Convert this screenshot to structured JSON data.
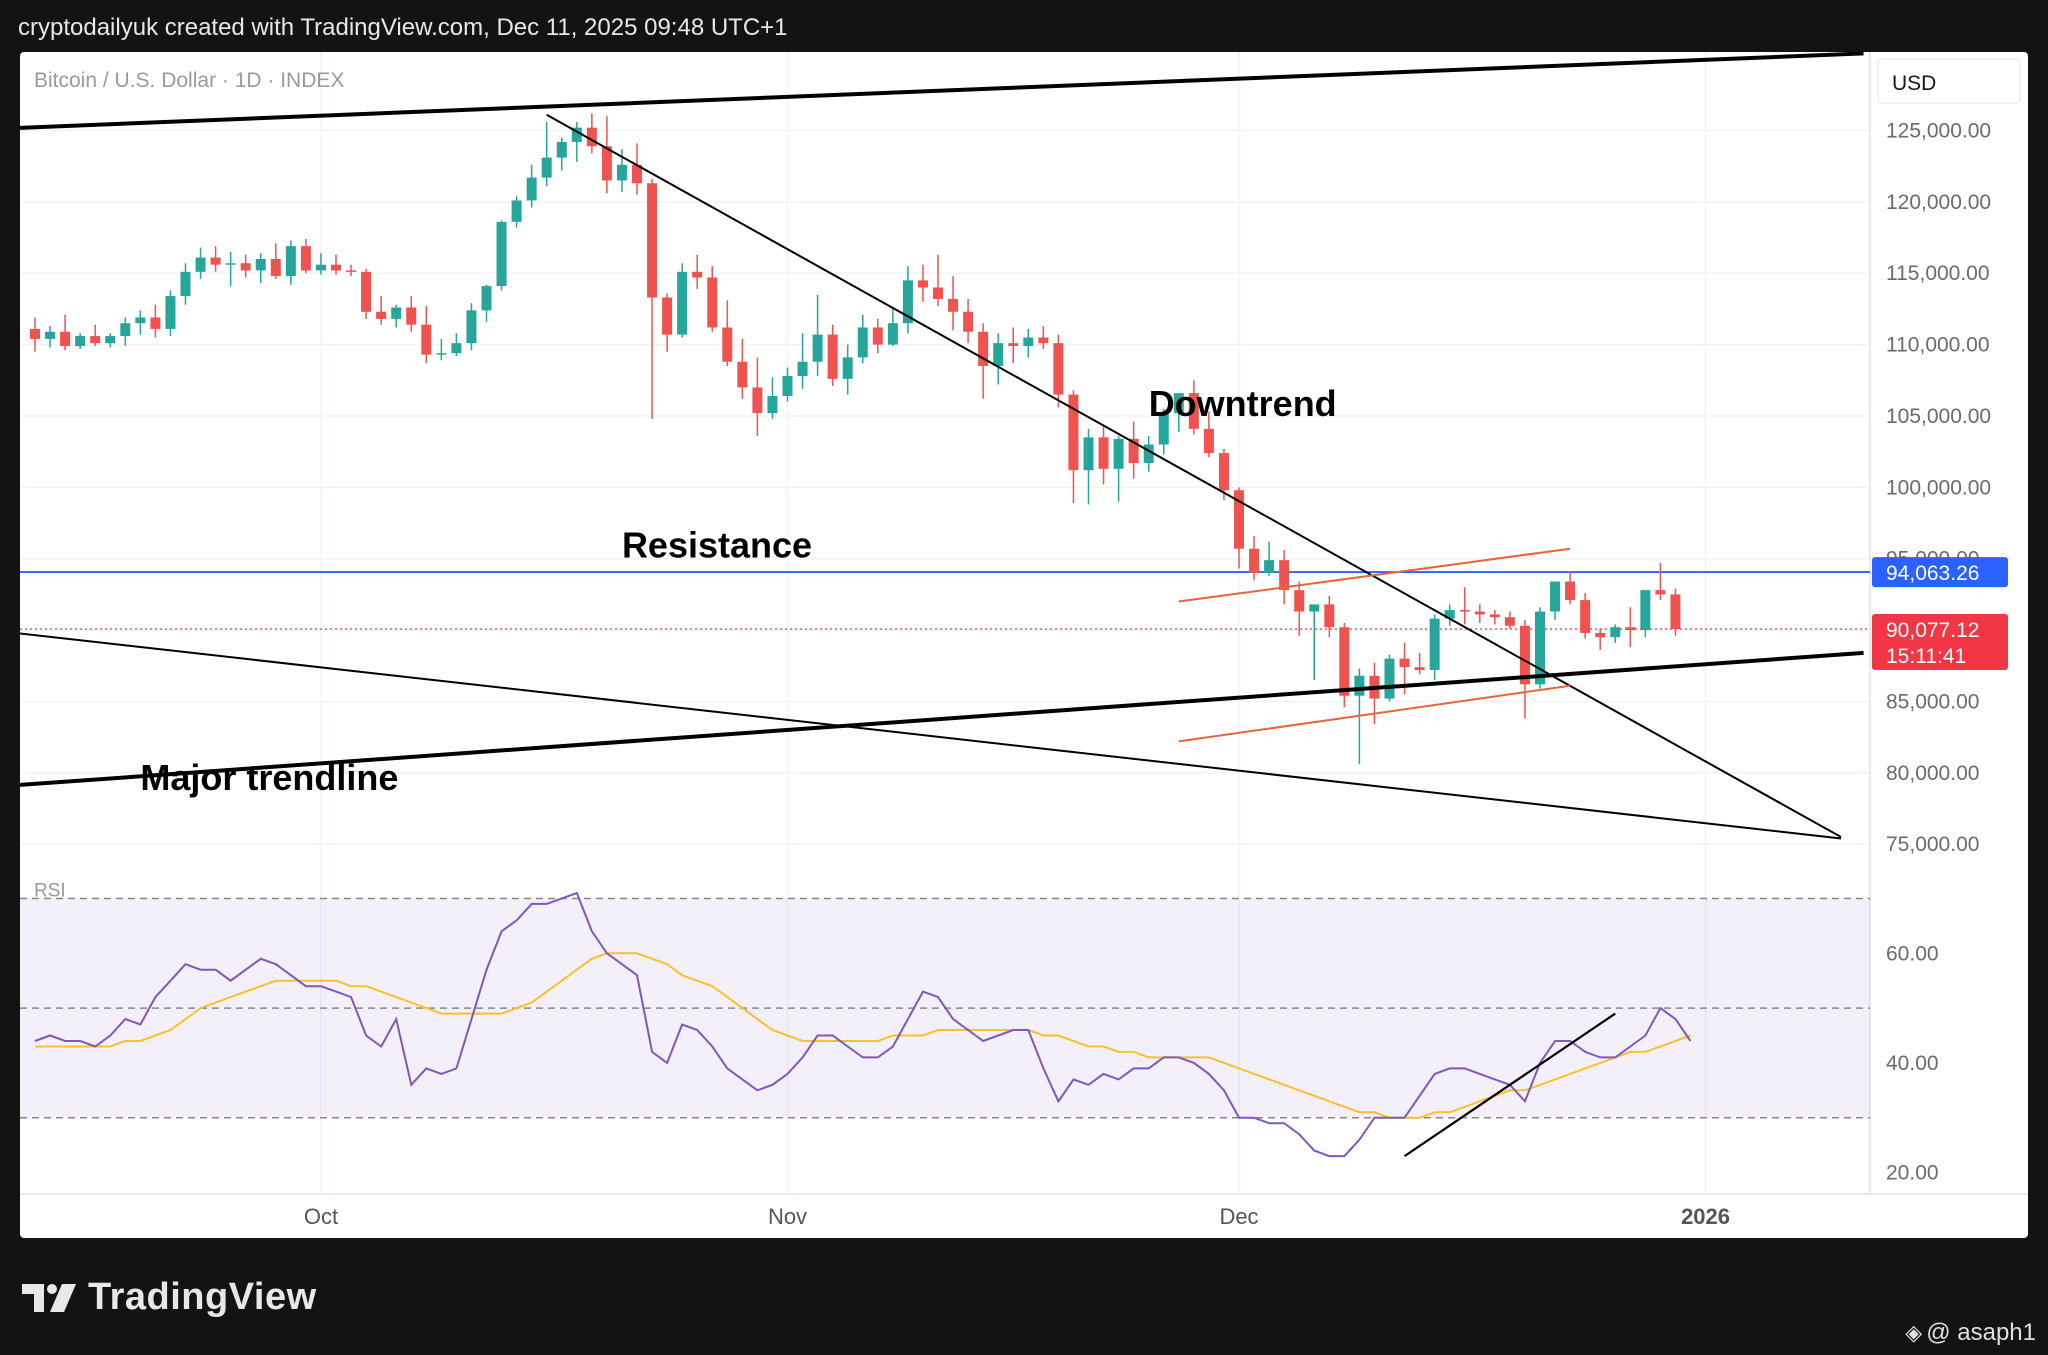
{
  "header": {
    "text": "cryptodailyuk created with TradingView.com, Dec 11, 2025 09:48 UTC+1"
  },
  "footer": {
    "logo_text": "TradingView",
    "watermark_text": "@ asaph1"
  },
  "colors": {
    "up": "#26a69a",
    "down": "#ef5350",
    "rsi": "#7e57c2",
    "rsi_ma": "#fbc02d",
    "resistance": "#2962ff",
    "channel": "#e8643c",
    "price_badge": "#f23645"
  },
  "chart_data": {
    "type": "candlestick",
    "symbol_title": "Bitcoin / U.S. Dollar · 1D · INDEX",
    "currency_label": "USD",
    "ylim": [
      72000,
      130500
    ],
    "y_ticks": [
      125000,
      120000,
      115000,
      110000,
      105000,
      100000,
      95000,
      85000,
      80000,
      75000
    ],
    "y_tick_labels": [
      "125,000.00",
      "120,000.00",
      "115,000.00",
      "110,000.00",
      "105,000.00",
      "100,000.00",
      "95,000.00",
      "85,000.00",
      "80,000.00",
      "75,000.00"
    ],
    "x_ticks": [
      {
        "day": 19,
        "label": "Oct",
        "bold": false
      },
      {
        "day": 50,
        "label": "Nov",
        "bold": false
      },
      {
        "day": 80,
        "label": "Dec",
        "bold": false
      },
      {
        "day": 111,
        "label": "2026",
        "bold": true
      }
    ],
    "price_labels": [
      {
        "label": "94,063.26",
        "value": 94063.26,
        "color": "#2962ff"
      },
      {
        "label": "90,077.12",
        "sub": "15:11:41",
        "value": 90077.12,
        "color": "#f23645"
      }
    ],
    "candles": [
      [
        111100,
        111900,
        109500,
        110400
      ],
      [
        110400,
        111300,
        109800,
        110900
      ],
      [
        110900,
        112100,
        109600,
        109900
      ],
      [
        109900,
        110800,
        109700,
        110600
      ],
      [
        110600,
        111400,
        109900,
        110100
      ],
      [
        110100,
        110800,
        109800,
        110600
      ],
      [
        110600,
        111900,
        109900,
        111500
      ],
      [
        111500,
        112400,
        110700,
        111900
      ],
      [
        111900,
        112800,
        110500,
        111100
      ],
      [
        111100,
        113800,
        110600,
        113400
      ],
      [
        113400,
        115700,
        112800,
        115100
      ],
      [
        115100,
        116800,
        114600,
        116100
      ],
      [
        116100,
        116900,
        115100,
        115600
      ],
      [
        115600,
        116500,
        114100,
        115700
      ],
      [
        115700,
        116300,
        114700,
        115200
      ],
      [
        115200,
        116400,
        114300,
        116000
      ],
      [
        116000,
        117100,
        114600,
        114800
      ],
      [
        114800,
        117300,
        114200,
        116900
      ],
      [
        116900,
        117400,
        115000,
        115200
      ],
      [
        115200,
        116400,
        114900,
        115600
      ],
      [
        115600,
        116300,
        114900,
        115200
      ],
      [
        115200,
        115600,
        114800,
        115100
      ],
      [
        115100,
        115300,
        111800,
        112300
      ],
      [
        112300,
        113400,
        111400,
        111800
      ],
      [
        111800,
        112800,
        111200,
        112600
      ],
      [
        112600,
        113400,
        110900,
        111400
      ],
      [
        111400,
        112700,
        108700,
        109300
      ],
      [
        109300,
        110400,
        108900,
        109400
      ],
      [
        109400,
        110800,
        109200,
        110100
      ],
      [
        110100,
        112900,
        109600,
        112400
      ],
      [
        112400,
        114200,
        111600,
        114100
      ],
      [
        114100,
        118700,
        113800,
        118600
      ],
      [
        118600,
        120400,
        118200,
        120100
      ],
      [
        120100,
        122600,
        119600,
        121700
      ],
      [
        121700,
        125600,
        121100,
        123100
      ],
      [
        123100,
        124500,
        122200,
        124200
      ],
      [
        124200,
        125600,
        122800,
        125200
      ],
      [
        125200,
        126200,
        123400,
        123900
      ],
      [
        123900,
        126000,
        120600,
        121500
      ],
      [
        121500,
        123700,
        120700,
        122600
      ],
      [
        122600,
        124100,
        120500,
        121300
      ],
      [
        121300,
        121600,
        104800,
        113300
      ],
      [
        113300,
        113600,
        109500,
        110700
      ],
      [
        110700,
        115700,
        110500,
        115100
      ],
      [
        115100,
        116300,
        113900,
        114700
      ],
      [
        114700,
        115500,
        110900,
        111200
      ],
      [
        111200,
        113100,
        108500,
        108800
      ],
      [
        108800,
        110400,
        106200,
        107000
      ],
      [
        107000,
        109100,
        103600,
        105200
      ],
      [
        105200,
        107700,
        104800,
        106400
      ],
      [
        106400,
        108400,
        106000,
        107800
      ],
      [
        107800,
        110800,
        106900,
        108800
      ],
      [
        108800,
        113500,
        107800,
        110700
      ],
      [
        110700,
        111400,
        107100,
        107600
      ],
      [
        107600,
        110000,
        106500,
        109100
      ],
      [
        109100,
        112100,
        108700,
        111200
      ],
      [
        111200,
        111800,
        109400,
        110000
      ],
      [
        110000,
        112600,
        109900,
        111500
      ],
      [
        111500,
        115500,
        110800,
        114500
      ],
      [
        114500,
        115600,
        113000,
        114000
      ],
      [
        114000,
        116300,
        112700,
        113200
      ],
      [
        113200,
        114800,
        111000,
        112300
      ],
      [
        112300,
        113200,
        110100,
        110900
      ],
      [
        110900,
        111500,
        106200,
        108500
      ],
      [
        108500,
        110800,
        107200,
        110100
      ],
      [
        110100,
        111200,
        108700,
        109900
      ],
      [
        109900,
        111100,
        109100,
        110500
      ],
      [
        110500,
        111300,
        109700,
        110100
      ],
      [
        110100,
        110700,
        105600,
        106500
      ],
      [
        106500,
        106800,
        98900,
        101200
      ],
      [
        101200,
        104100,
        98800,
        103500
      ],
      [
        103500,
        104300,
        100200,
        101300
      ],
      [
        101300,
        103600,
        99000,
        103400
      ],
      [
        103400,
        104600,
        100600,
        101700
      ],
      [
        101700,
        103600,
        101100,
        103000
      ],
      [
        103000,
        105500,
        102300,
        105200
      ],
      [
        105200,
        106400,
        103900,
        106600
      ],
      [
        106600,
        107500,
        103700,
        104100
      ],
      [
        104100,
        105300,
        102100,
        102400
      ],
      [
        102400,
        102700,
        99100,
        99800
      ],
      [
        99800,
        100000,
        94300,
        95700
      ],
      [
        95700,
        96600,
        93500,
        94000
      ],
      [
        94000,
        96200,
        93800,
        94900
      ],
      [
        94900,
        95600,
        91800,
        92800
      ],
      [
        92800,
        93400,
        89600,
        91300
      ],
      [
        91300,
        91600,
        86500,
        91800
      ],
      [
        91800,
        92400,
        89500,
        90200
      ],
      [
        90200,
        90500,
        84600,
        85400
      ],
      [
        85400,
        87300,
        80600,
        86800
      ],
      [
        86800,
        87700,
        83400,
        85200
      ],
      [
        85200,
        88300,
        85000,
        88000
      ],
      [
        88000,
        89100,
        85500,
        87400
      ],
      [
        87400,
        88400,
        86900,
        87200
      ],
      [
        87200,
        91100,
        86500,
        90800
      ],
      [
        90800,
        91800,
        90300,
        91400
      ],
      [
        91400,
        93000,
        90400,
        91300
      ],
      [
        91300,
        91800,
        90500,
        91100
      ],
      [
        91100,
        91400,
        90400,
        90900
      ],
      [
        90900,
        91300,
        90100,
        90300
      ],
      [
        90300,
        90700,
        83800,
        86200
      ],
      [
        86200,
        91600,
        85900,
        91300
      ],
      [
        91300,
        93200,
        90700,
        93400
      ],
      [
        93400,
        94100,
        91800,
        92100
      ],
      [
        92100,
        92600,
        89400,
        89800
      ],
      [
        89800,
        90100,
        88600,
        89500
      ],
      [
        89500,
        90400,
        89100,
        90200
      ],
      [
        90200,
        91600,
        88800,
        90000
      ],
      [
        90000,
        92600,
        89500,
        92800
      ],
      [
        92800,
        94700,
        92100,
        92500
      ],
      [
        92500,
        92900,
        89600,
        90077
      ]
    ],
    "rsi": {
      "label": "RSI",
      "ylim": [
        17,
        73
      ],
      "levels": [
        70,
        50,
        30
      ],
      "y_ticks": [
        60,
        40,
        20
      ],
      "y_tick_labels": [
        "60.00",
        "40.00",
        "20.00"
      ],
      "values": [
        44,
        45,
        44,
        44,
        43,
        45,
        48,
        47,
        52,
        55,
        58,
        57,
        57,
        55,
        57,
        59,
        58,
        56,
        54,
        54,
        53,
        52,
        45,
        43,
        48,
        36,
        39,
        38,
        39,
        48,
        57,
        64,
        66,
        69,
        69,
        70,
        71,
        64,
        60,
        58,
        56,
        42,
        40,
        47,
        46,
        43,
        39,
        37,
        35,
        36,
        38,
        41,
        45,
        45,
        43,
        41,
        41,
        43,
        48,
        53,
        52,
        48,
        46,
        44,
        45,
        46,
        46,
        39,
        33,
        37,
        36,
        38,
        37,
        39,
        39,
        41,
        41,
        40,
        38,
        35,
        30,
        30,
        29,
        29,
        27,
        24,
        23,
        23,
        26,
        30,
        30,
        30,
        34,
        38,
        39,
        39,
        38,
        37,
        36,
        33,
        40,
        44,
        44,
        42,
        41,
        41,
        43,
        45,
        50,
        48,
        44
      ],
      "ma": [
        43,
        43,
        43,
        43,
        43,
        43,
        44,
        44,
        45,
        46,
        48,
        50,
        51,
        52,
        53,
        54,
        55,
        55,
        55,
        55,
        55,
        54,
        54,
        53,
        52,
        51,
        50,
        49,
        49,
        49,
        49,
        49,
        50,
        51,
        53,
        55,
        57,
        59,
        60,
        60,
        60,
        59,
        58,
        56,
        55,
        54,
        52,
        50,
        48,
        46,
        45,
        44,
        44,
        44,
        44,
        44,
        44,
        45,
        45,
        45,
        46,
        46,
        46,
        46,
        46,
        46,
        46,
        45,
        45,
        44,
        43,
        43,
        42,
        42,
        41,
        41,
        41,
        41,
        41,
        40,
        39,
        38,
        37,
        36,
        35,
        34,
        33,
        32,
        31,
        31,
        30,
        30,
        30,
        31,
        31,
        32,
        33,
        34,
        35,
        35,
        36,
        37,
        38,
        39,
        40,
        41,
        42,
        42,
        43,
        44,
        45
      ]
    },
    "annotations": [
      {
        "text": "Downtrend",
        "day": 74,
        "price": 105000
      },
      {
        "text": "Resistance",
        "day": 39,
        "price": 95100
      },
      {
        "text": "Major trendline",
        "day": 7,
        "price": 78800
      }
    ],
    "resistance_level": 94063.26,
    "current_price": 90077.12,
    "lines": [
      {
        "name": "upper-major-trendline",
        "from": [
          -3,
          125100
        ],
        "to": [
          121.5,
          130400
        ],
        "width": 4,
        "color": "#000000"
      },
      {
        "name": "downtrend-line",
        "from": [
          34,
          126100
        ],
        "to": [
          120,
          75500
        ],
        "width": 2,
        "color": "#000000"
      },
      {
        "name": "major-trendline",
        "from": [
          -3,
          79000
        ],
        "to": [
          121.5,
          88400
        ],
        "width": 4,
        "color": "#000000"
      },
      {
        "name": "lower-support-line",
        "from": [
          -3,
          90000
        ],
        "to": [
          120,
          75400
        ],
        "width": 2,
        "color": "#000000"
      },
      {
        "name": "channel-upper-line",
        "from": [
          76,
          92000
        ],
        "to": [
          102,
          95700
        ],
        "width": 2,
        "color": "#e8643c"
      },
      {
        "name": "channel-lower-line",
        "from": [
          76,
          82200
        ],
        "to": [
          102,
          86100
        ],
        "width": 2,
        "color": "#e8643c"
      }
    ],
    "rsi_trendline": {
      "from": [
        91,
        23
      ],
      "to": [
        105,
        49
      ]
    }
  }
}
